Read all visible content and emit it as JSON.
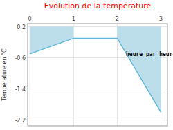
{
  "chart_data": {
    "type": "line",
    "title": "Evolution de la température",
    "title_color": "#ff0000",
    "y_label": "Température en °C",
    "x": [
      0,
      1,
      2,
      3
    ],
    "series": [
      {
        "type": "area",
        "x": [
          0,
          1
        ],
        "values": [
          -0.5,
          -0.1
        ],
        "base": 0.2,
        "color": "#b0d8e8"
      },
      {
        "type": "area",
        "x": [
          2,
          3
        ],
        "values": [
          -0.1,
          -2.0
        ],
        "base": 0.2,
        "color": "#b0d8e8"
      },
      {
        "type": "line",
        "values": [
          -0.5,
          -0.1,
          -0.1,
          -2.0
        ],
        "color": "#60b8d8"
      }
    ],
    "xlim": [
      -0.05,
      3.15
    ],
    "ylim": [
      -2.35,
      0.28
    ],
    "xticks": [
      0,
      1,
      2,
      3
    ],
    "yticks": [
      0.2,
      -0.6,
      -1.4,
      -2.2
    ],
    "grid": true,
    "annotations": [
      {
        "text": "heure par heure",
        "x": 2.2,
        "y": -0.42
      }
    ]
  }
}
